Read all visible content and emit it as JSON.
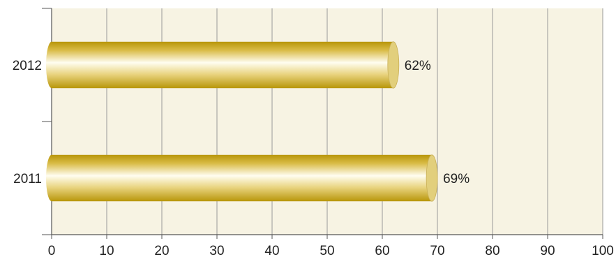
{
  "chart_data": {
    "type": "bar",
    "orientation": "horizontal",
    "title": "",
    "xlabel": "",
    "ylabel": "",
    "categories": [
      "2012",
      "2011"
    ],
    "values": [
      62,
      69
    ],
    "value_labels": [
      "62%",
      "69%"
    ],
    "xlim": [
      0,
      100
    ],
    "x_ticks": [
      0,
      10,
      20,
      30,
      40,
      50,
      60,
      70,
      80,
      90,
      100
    ],
    "grid": true,
    "legend": "none",
    "bar_style": "3d-cylinder",
    "colors": {
      "plot_background": "#f7f3e3",
      "grid": "#9a9a9a",
      "bar_dark": "#b8960a",
      "bar_mid": "#e7d27a",
      "bar_light": "#fffdf0",
      "bar_cap": "#e2cf7c"
    }
  }
}
